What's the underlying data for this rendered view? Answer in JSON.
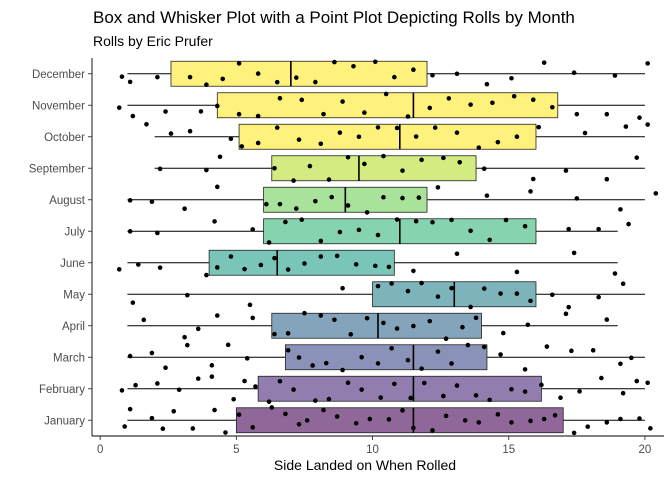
{
  "chart_data": {
    "type": "box-and-jitter",
    "title": "Box and Whisker Plot with a Point Plot Depicting Rolls by Month",
    "subtitle": "Rolls by Eric Prufer",
    "xlabel": "Side Landed on When Rolled",
    "ylabel": "",
    "xlim": [
      -0.3,
      20.7
    ],
    "x_ticks": [
      0,
      5,
      10,
      15,
      20
    ],
    "grid": false,
    "legend": "none",
    "categories": [
      "January",
      "February",
      "March",
      "April",
      "May",
      "June",
      "July",
      "August",
      "September",
      "October",
      "November",
      "December"
    ],
    "boxes": [
      {
        "month": "January",
        "min": 1,
        "q1": 5,
        "median": 11.5,
        "q3": 17,
        "max": 20,
        "color": "#440154"
      },
      {
        "month": "February",
        "min": 1,
        "q1": 5.8,
        "median": 11.5,
        "q3": 16.2,
        "max": 20,
        "color": "#482878"
      },
      {
        "month": "March",
        "min": 1,
        "q1": 6.8,
        "median": 11.5,
        "q3": 14.2,
        "max": 20,
        "color": "#3e4a89"
      },
      {
        "month": "April",
        "min": 1,
        "q1": 6.3,
        "median": 10.2,
        "q3": 14,
        "max": 19,
        "color": "#31688e"
      },
      {
        "month": "May",
        "min": 1,
        "q1": 10,
        "median": 13,
        "q3": 16,
        "max": 20,
        "color": "#26828e"
      },
      {
        "month": "June",
        "min": 1,
        "q1": 4,
        "median": 6.5,
        "q3": 10.8,
        "max": 19,
        "color": "#1f9e89"
      },
      {
        "month": "July",
        "min": 1,
        "q1": 6,
        "median": 11,
        "q3": 16,
        "max": 19,
        "color": "#35b779"
      },
      {
        "month": "August",
        "min": 1,
        "q1": 6,
        "median": 9,
        "q3": 12,
        "max": 20,
        "color": "#6ece58"
      },
      {
        "month": "September",
        "min": 2,
        "q1": 6.3,
        "median": 9.5,
        "q3": 13.8,
        "max": 20,
        "color": "#b5de2b"
      },
      {
        "month": "October",
        "min": 2,
        "q1": 5.1,
        "median": 11,
        "q3": 16,
        "max": 20,
        "color": "#fde725"
      },
      {
        "month": "November",
        "min": 1,
        "q1": 4.3,
        "median": 11.5,
        "q3": 16.8,
        "max": 20,
        "color": "#fde725"
      },
      {
        "month": "December",
        "min": 1,
        "q1": 2.6,
        "median": 7,
        "q3": 12,
        "max": 20,
        "color": "#fde725"
      }
    ],
    "points": {
      "January": [
        0.9,
        1.1,
        1.9,
        2.3,
        2.7,
        3.4,
        4.2,
        4.6,
        5.1,
        5.6,
        6.3,
        6.8,
        7.3,
        7.6,
        8.2,
        8.7,
        9.4,
        9.9,
        10.6,
        11.1,
        11.5,
        12.2,
        12.7,
        13.4,
        13.9,
        14.6,
        15.1,
        15.8,
        16.3,
        16.7,
        17.4,
        17.9,
        18.6,
        19.1,
        19.8,
        20.2
      ],
      "February": [
        0.8,
        1.3,
        2.1,
        2.9,
        3.6,
        4.1,
        4.9,
        5.3,
        5.7,
        6.2,
        6.6,
        7.1,
        7.9,
        8.4,
        9.1,
        9.6,
        10.3,
        10.8,
        11.4,
        11.9,
        12.6,
        13.1,
        13.8,
        14.3,
        15.1,
        15.6,
        16.2,
        16.9,
        17.6,
        18.4,
        19.2,
        19.7,
        20.1
      ],
      "March": [
        1.1,
        1.9,
        2.4,
        3.2,
        4.1,
        4.7,
        5.4,
        6.9,
        7.3,
        7.8,
        8.3,
        8.9,
        9.6,
        10.2,
        10.7,
        11.3,
        11.8,
        12.4,
        12.9,
        13.5,
        14.1,
        14.7,
        15.6,
        16.4,
        17.3,
        18.1,
        19.1,
        19.5
      ],
      "April": [
        1.6,
        3.1,
        3.6,
        4.3,
        5.6,
        6.4,
        6.9,
        7.5,
        8.1,
        8.6,
        9.2,
        9.8,
        10.4,
        10.9,
        11.5,
        12.1,
        12.7,
        13.3,
        13.8,
        14.8,
        15.7,
        17.1,
        18.6
      ],
      "May": [
        1.2,
        3.2,
        5.5,
        8.9,
        10.2,
        10.7,
        11.3,
        11.8,
        12.4,
        12.9,
        13.6,
        14.1,
        14.7,
        15.3,
        15.8,
        16.6,
        17.2,
        18.3,
        19.2
      ],
      "June": [
        0.7,
        1.4,
        2.2,
        3.9,
        4.3,
        4.8,
        5.3,
        5.9,
        6.4,
        6.9,
        7.5,
        8.1,
        8.7,
        9.4,
        10.1,
        10.6,
        11.5,
        13.1,
        15.3,
        17.4,
        18.9
      ],
      "July": [
        1.1,
        2.1,
        4.2,
        5.6,
        6.2,
        6.8,
        7.4,
        8.1,
        8.8,
        9.5,
        10.2,
        10.9,
        11.6,
        12.2,
        12.9,
        13.6,
        14.3,
        14.9,
        15.6,
        17.2,
        18.3,
        19.4
      ],
      "August": [
        1.1,
        1.9,
        3.1,
        4.3,
        6.1,
        6.6,
        7.2,
        7.9,
        8.5,
        9.1,
        9.8,
        10.4,
        11.1,
        11.7,
        12.4,
        14.2,
        15.8,
        17.5,
        19.1,
        20.4
      ],
      "September": [
        2.2,
        3.9,
        4.4,
        6.4,
        7.1,
        7.7,
        8.4,
        9.1,
        9.7,
        10.4,
        11.1,
        11.8,
        12.6,
        13.2,
        14.1,
        15.9,
        17.1,
        18.6,
        19.7
      ],
      "October": [
        1.7,
        2.6,
        3.3,
        4.8,
        5.2,
        5.8,
        6.5,
        7.3,
        8.1,
        8.8,
        9.5,
        10.2,
        10.9,
        11.6,
        12.3,
        13.1,
        13.9,
        14.6,
        15.3,
        16.1,
        17.8,
        19.3,
        20.1
      ],
      "November": [
        0.7,
        1.2,
        2.4,
        3.7,
        4.3,
        5.1,
        5.8,
        6.6,
        7.4,
        8.2,
        8.9,
        9.7,
        10.5,
        11.3,
        12.1,
        12.8,
        13.6,
        14.4,
        15.2,
        15.9,
        16.6,
        17.5,
        18.6,
        19.8
      ],
      "December": [
        0.8,
        1.1,
        2.1,
        3.3,
        3.9,
        4.5,
        5.1,
        5.8,
        6.5,
        7.2,
        7.9,
        8.6,
        9.3,
        10.1,
        10.8,
        11.5,
        12.2,
        13.1,
        14.2,
        15.1,
        16.3,
        17.4,
        18.9,
        20.1
      ]
    }
  }
}
